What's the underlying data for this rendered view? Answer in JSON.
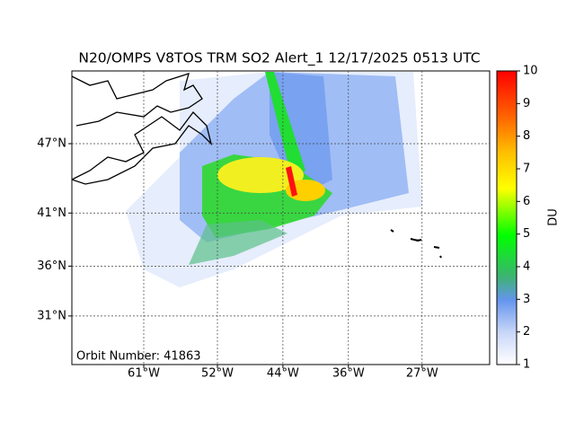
{
  "map": {
    "title": "N20/OMPS V8TOS TRM SO2 Alert_1 12/17/2025 0513 UTC",
    "annotation": "Orbit Number: 41863",
    "lat_labels": [
      {
        "value": 47,
        "label": "47°N"
      },
      {
        "value": 41,
        "label": "41°N"
      },
      {
        "value": 36,
        "label": "36°N"
      },
      {
        "value": 31,
        "label": "31°N"
      }
    ],
    "lon_labels": [
      {
        "value": -61,
        "label": "61°W"
      },
      {
        "value": -52,
        "label": "52°W"
      },
      {
        "value": -44,
        "label": "44°W"
      },
      {
        "value": -36,
        "label": "36°W"
      },
      {
        "value": -27,
        "label": "27°W"
      }
    ],
    "colorbar": {
      "label": "DU",
      "lim": [
        1,
        10
      ],
      "ticks": [
        1,
        2,
        3,
        4,
        5,
        6,
        7,
        8,
        9,
        10
      ]
    }
  }
}
